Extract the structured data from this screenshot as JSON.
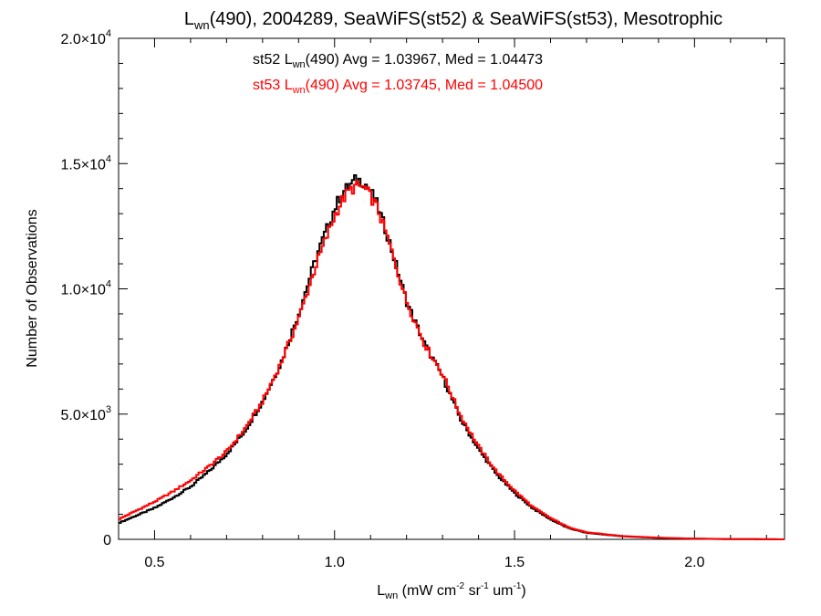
{
  "chart_data": {
    "type": "line",
    "title": {
      "pre": "L",
      "sub": "wn",
      "post": "(490), 2004289, SeaWiFS(st52) & SeaWiFS(st53), Mesotrophic"
    },
    "xlabel": {
      "pre": "L",
      "sub": "wn",
      "units": " (mW cm",
      "e1": "-2",
      "s1": " sr",
      "e2": "-1",
      "s2": " um",
      "e3": "-1",
      "s3": ")"
    },
    "ylabel": "Number of Observations",
    "xlim": [
      0.4,
      2.25
    ],
    "ylim": [
      0,
      20000
    ],
    "x_ticks": [
      {
        "value": 0.5,
        "label": "0.5"
      },
      {
        "value": 1.0,
        "label": "1.0"
      },
      {
        "value": 1.5,
        "label": "1.5"
      },
      {
        "value": 2.0,
        "label": "2.0"
      }
    ],
    "y_ticks": [
      {
        "value": 0,
        "mant": "0",
        "exp": ""
      },
      {
        "value": 5000,
        "mant": "5.0×10",
        "exp": "3"
      },
      {
        "value": 10000,
        "mant": "1.0×10",
        "exp": "4"
      },
      {
        "value": 15000,
        "mant": "1.5×10",
        "exp": "4"
      },
      {
        "value": 20000,
        "mant": "2.0×10",
        "exp": "4"
      }
    ],
    "grid": false,
    "legend": "top-center",
    "x": [
      0.4,
      0.45,
      0.5,
      0.55,
      0.6,
      0.65,
      0.7,
      0.75,
      0.8,
      0.85,
      0.9,
      0.95,
      1.0,
      1.02,
      1.04,
      1.06,
      1.08,
      1.1,
      1.12,
      1.15,
      1.2,
      1.25,
      1.3,
      1.35,
      1.4,
      1.45,
      1.5,
      1.55,
      1.6,
      1.65,
      1.7,
      1.8,
      1.9,
      2.0,
      2.1,
      2.25
    ],
    "series": [
      {
        "name": "st52",
        "legend": {
          "pre": "st52 L",
          "sub": "wn",
          "post": "(490) Avg = 1.03967, Med = 1.04473"
        },
        "color": "#000000",
        "values": [
          650,
          950,
          1250,
          1650,
          2100,
          2700,
          3400,
          4300,
          5500,
          7000,
          9000,
          11300,
          13200,
          13800,
          14100,
          14350,
          14300,
          13900,
          13300,
          12000,
          9500,
          7800,
          6500,
          4800,
          3600,
          2600,
          1850,
          1250,
          800,
          450,
          260,
          120,
          60,
          25,
          10,
          0
        ]
      },
      {
        "name": "st53",
        "legend": {
          "pre": "st53 L",
          "sub": "wn",
          "post": "(490) Avg = 1.03745, Med = 1.04500"
        },
        "color": "#ff0000",
        "values": [
          800,
          1150,
          1500,
          1900,
          2350,
          2900,
          3500,
          4400,
          5500,
          7000,
          8800,
          11000,
          12900,
          13500,
          13900,
          14100,
          14050,
          13700,
          13200,
          11900,
          9500,
          7800,
          6600,
          4950,
          3700,
          2700,
          1950,
          1300,
          850,
          480,
          280,
          130,
          65,
          28,
          12,
          0
        ]
      }
    ]
  }
}
